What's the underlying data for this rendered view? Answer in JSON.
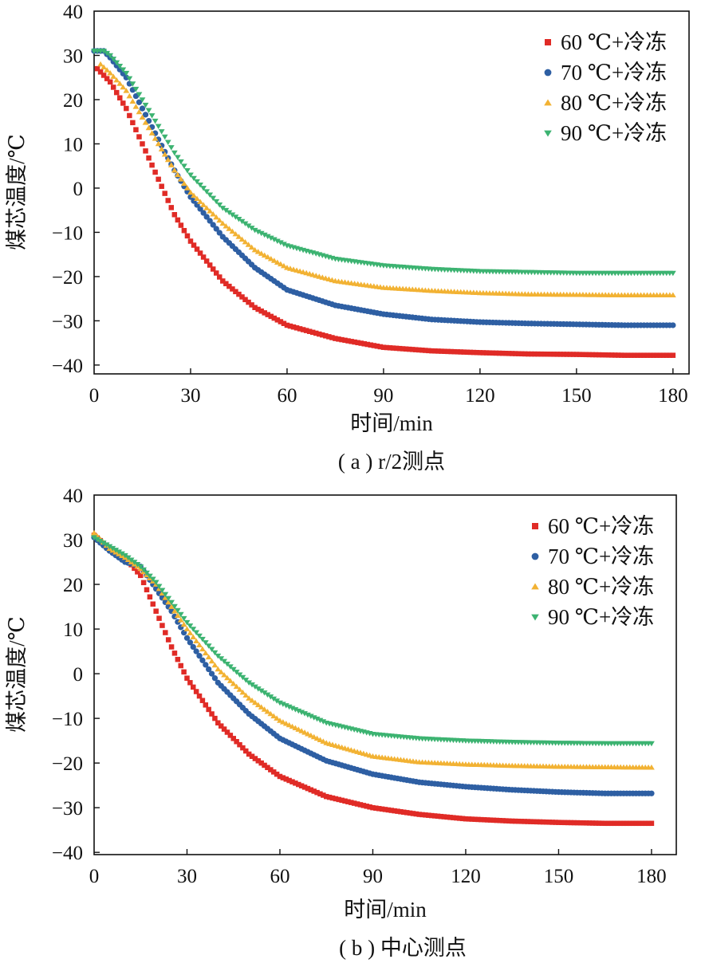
{
  "chart_data": [
    {
      "type": "scatter",
      "subtitle": "( a ) r/2测点",
      "xlabel": "时间/min",
      "ylabel": "煤芯温度/℃",
      "xlim": [
        0,
        185
      ],
      "ylim": [
        -42,
        40
      ],
      "xticks": [
        "0",
        "30",
        "60",
        "90",
        "120",
        "150",
        "180"
      ],
      "yticks": [
        "40",
        "30",
        "20",
        "10",
        "0",
        "-10",
        "-20",
        "-30",
        "-40"
      ],
      "legend_position": "top-right",
      "grid": false,
      "series": [
        {
          "name": "60 ℃+冷冻",
          "color": "#e02b26",
          "marker": "square",
          "x": [
            1,
            5,
            10,
            15,
            20,
            25,
            30,
            40,
            50,
            60,
            75,
            90,
            105,
            120,
            135,
            150,
            165,
            180
          ],
          "y": [
            27,
            24,
            18,
            10,
            2,
            -6,
            -12,
            -21,
            -27,
            -31,
            -34,
            -36,
            -36.8,
            -37.2,
            -37.5,
            -37.6,
            -37.8,
            -37.8
          ]
        },
        {
          "name": "70 ℃+冷冻",
          "color": "#2e5fa3",
          "marker": "circle",
          "x": [
            0,
            3,
            5,
            10,
            15,
            20,
            25,
            30,
            40,
            50,
            60,
            75,
            90,
            105,
            120,
            135,
            150,
            165,
            180
          ],
          "y": [
            31,
            31,
            29.5,
            25,
            18,
            11,
            4,
            -2,
            -11,
            -18,
            -23,
            -26.5,
            -28.5,
            -29.7,
            -30.3,
            -30.6,
            -30.8,
            -31,
            -31
          ]
        },
        {
          "name": "80 ℃+冷冻",
          "color": "#f2b233",
          "marker": "triangle-up",
          "x": [
            2,
            5,
            10,
            15,
            20,
            25,
            30,
            40,
            50,
            60,
            75,
            90,
            105,
            120,
            135,
            150,
            165,
            180
          ],
          "y": [
            28,
            26,
            22,
            16,
            10,
            4,
            -1,
            -8,
            -14,
            -18,
            -21,
            -22.5,
            -23.2,
            -23.7,
            -24,
            -24.1,
            -24.2,
            -24.2
          ]
        },
        {
          "name": "90 ℃+冷冻",
          "color": "#3cb371",
          "marker": "triangle-down",
          "x": [
            0,
            3,
            5,
            10,
            15,
            20,
            25,
            30,
            40,
            50,
            60,
            75,
            90,
            105,
            120,
            135,
            150,
            165,
            180
          ],
          "y": [
            31,
            31,
            30,
            26,
            20,
            14,
            8,
            3,
            -4.5,
            -9.5,
            -13,
            -16,
            -17.5,
            -18.3,
            -18.8,
            -19,
            -19.2,
            -19.2,
            -19.2
          ]
        }
      ]
    },
    {
      "type": "scatter",
      "subtitle": "( b ) 中心测点",
      "xlabel": "时间/min",
      "ylabel": "煤芯温度/℃",
      "xlim": [
        0,
        188
      ],
      "ylim": [
        -40.5,
        40
      ],
      "xticks": [
        "0",
        "30",
        "60",
        "90",
        "120",
        "150",
        "180"
      ],
      "yticks": [
        "40",
        "30",
        "20",
        "10",
        "0",
        "-10",
        "-20",
        "-30",
        "-40"
      ],
      "legend_position": "top-right",
      "grid": false,
      "series": [
        {
          "name": "60 ℃+冷冻",
          "color": "#e02b26",
          "marker": "square",
          "x": [
            0,
            5,
            10,
            15,
            20,
            25,
            30,
            40,
            50,
            60,
            75,
            90,
            105,
            120,
            135,
            150,
            165,
            180
          ],
          "y": [
            31,
            28,
            26,
            22,
            14,
            6,
            -1,
            -11,
            -18,
            -23,
            -27.5,
            -30,
            -31.5,
            -32.5,
            -33,
            -33.3,
            -33.5,
            -33.5
          ]
        },
        {
          "name": "70 ℃+冷冻",
          "color": "#2e5fa3",
          "marker": "circle",
          "x": [
            0,
            5,
            10,
            15,
            20,
            25,
            30,
            40,
            50,
            60,
            75,
            90,
            105,
            120,
            135,
            150,
            165,
            180
          ],
          "y": [
            30.5,
            27.5,
            25,
            24,
            19,
            14,
            8,
            -2,
            -9,
            -14.5,
            -19.5,
            -22.5,
            -24.3,
            -25.3,
            -26,
            -26.5,
            -26.8,
            -26.8
          ]
        },
        {
          "name": "80 ℃+冷冻",
          "color": "#f2b233",
          "marker": "triangle-up",
          "x": [
            0,
            5,
            10,
            15,
            20,
            25,
            30,
            40,
            50,
            60,
            75,
            90,
            105,
            120,
            135,
            150,
            165,
            180
          ],
          "y": [
            31.5,
            28,
            26,
            23.5,
            20,
            15,
            10,
            1,
            -5.5,
            -10.5,
            -15.5,
            -18.5,
            -19.8,
            -20.3,
            -20.6,
            -20.8,
            -20.9,
            -21
          ]
        },
        {
          "name": "90 ℃+冷冻",
          "color": "#3cb371",
          "marker": "triangle-down",
          "x": [
            0,
            5,
            10,
            15,
            20,
            25,
            30,
            40,
            50,
            60,
            75,
            90,
            105,
            120,
            135,
            150,
            165,
            180
          ],
          "y": [
            30.5,
            28.5,
            26.5,
            24,
            20.5,
            16,
            11.5,
            4,
            -2,
            -6.5,
            -11,
            -13.5,
            -14.5,
            -15,
            -15.3,
            -15.5,
            -15.6,
            -15.6
          ]
        }
      ]
    }
  ]
}
